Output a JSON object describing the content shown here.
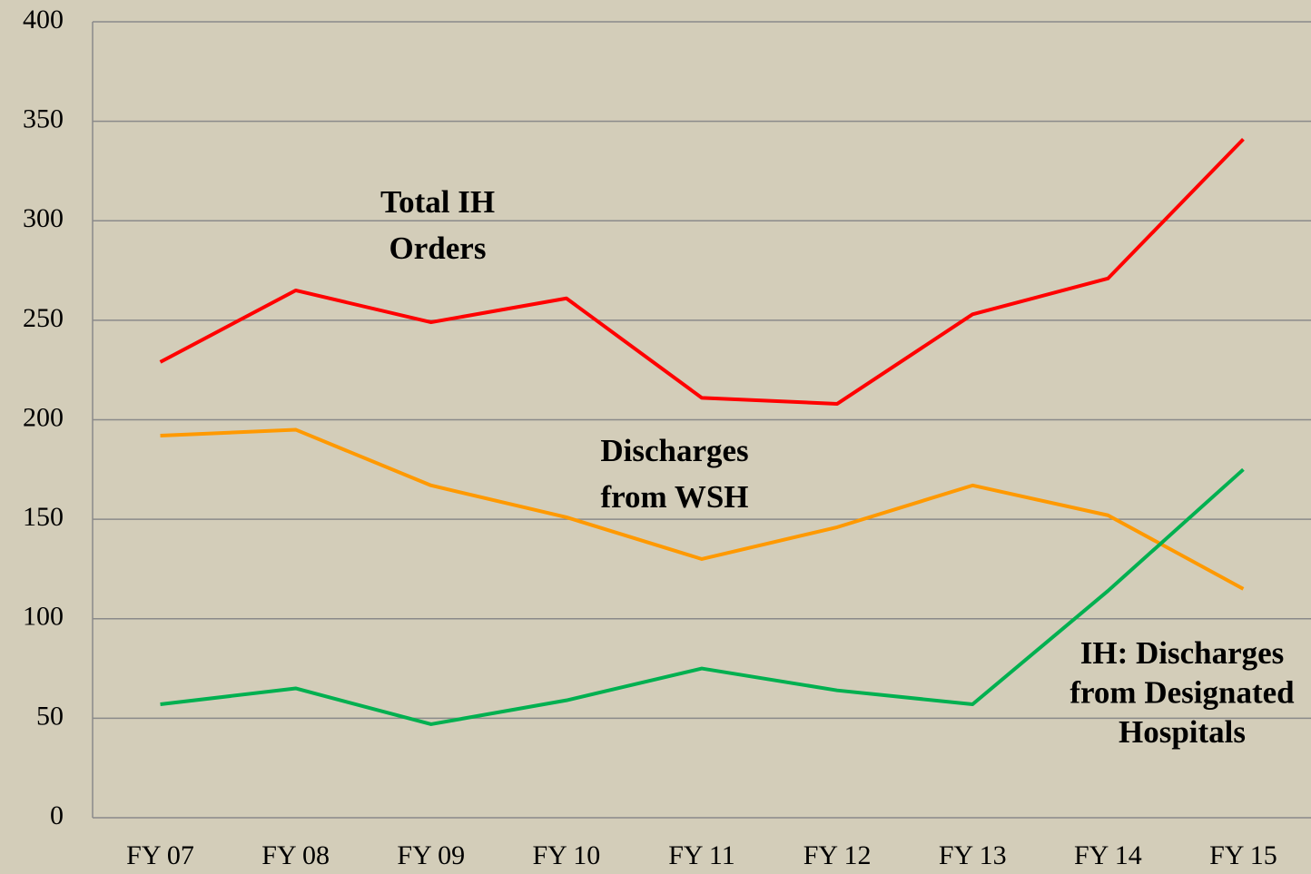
{
  "chart_data": {
    "type": "line",
    "categories": [
      "FY 07",
      "FY 08",
      "FY 09",
      "FY 10",
      "FY 11",
      "FY 12",
      "FY 13",
      "FY 14",
      "FY 15"
    ],
    "series": [
      {
        "label": [
          "Total IH",
          "Orders"
        ],
        "color": "#ff0000",
        "values": [
          229,
          265,
          249,
          261,
          211,
          208,
          253,
          271,
          341
        ]
      },
      {
        "label": [
          "Discharges",
          "from WSH"
        ],
        "color": "#ff9900",
        "values": [
          192,
          195,
          167,
          151,
          130,
          146,
          167,
          152,
          115
        ]
      },
      {
        "label": [
          "IH: Discharges",
          "from Designated",
          "Hospitals"
        ],
        "color": "#00b050",
        "values": [
          57,
          65,
          47,
          59,
          75,
          64,
          57,
          114,
          175
        ]
      }
    ],
    "ylim": [
      0,
      400
    ],
    "yticks": [
      0,
      50,
      100,
      150,
      200,
      250,
      300,
      350,
      400
    ],
    "grid": true
  }
}
